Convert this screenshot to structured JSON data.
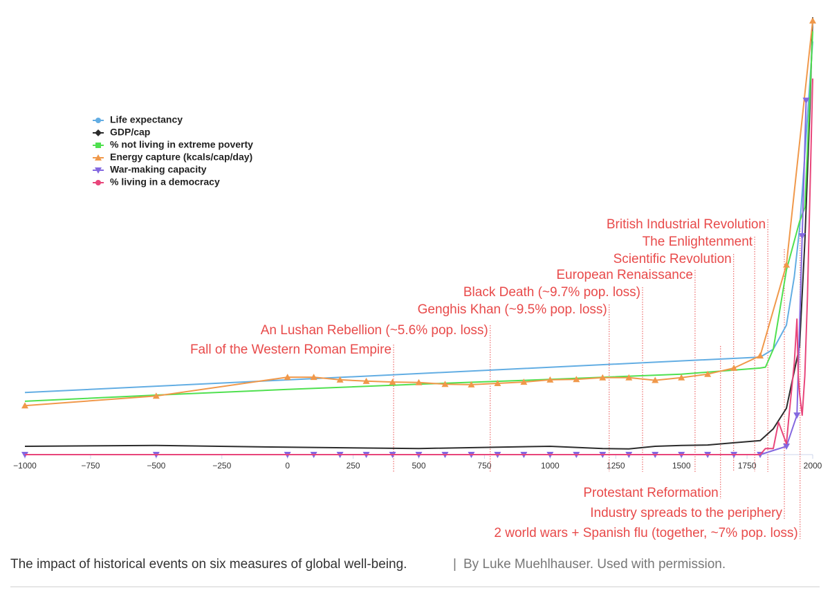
{
  "chart_data": {
    "type": "line",
    "xlim": [
      -1000,
      2000
    ],
    "ylim": [
      0,
      100
    ],
    "xticks": [
      {
        "value": -1000,
        "label": "−1000"
      },
      {
        "value": -750,
        "label": "−750"
      },
      {
        "value": -500,
        "label": "−500"
      },
      {
        "value": -250,
        "label": "−250"
      },
      0,
      250,
      500,
      750,
      1000,
      1250,
      1500,
      1750,
      2000
    ],
    "series": [
      {
        "name": "Life expectancy",
        "color": "#62ade3",
        "symbol": "circle",
        "show_markers": false,
        "x": [
          -1000,
          1800,
          1850,
          1900,
          1930,
          1950,
          1960,
          2000
        ],
        "values": [
          14.2,
          22.3,
          24.1,
          29.6,
          40.7,
          51.7,
          59.9,
          94.5
        ]
      },
      {
        "name": "GDP/cap",
        "color": "#2b2b2b",
        "symbol": "diamond",
        "show_markers": false,
        "x": [
          -1000,
          -500,
          0,
          500,
          1000,
          1200,
          1300,
          1400,
          1500,
          1600,
          1700,
          1800,
          1850,
          1900,
          1950,
          1970,
          1990,
          2000
        ],
        "values": [
          1.9,
          2.1,
          1.7,
          1.4,
          1.9,
          1.4,
          1.3,
          1.9,
          2.1,
          2.2,
          2.7,
          3.2,
          5.9,
          10.6,
          24.8,
          48.6,
          80.2,
          100
        ]
      },
      {
        "name": "% not living in extreme poverty",
        "color": "#4fe04f",
        "symbol": "square",
        "show_markers": false,
        "x": [
          -1000,
          -500,
          0,
          500,
          1000,
          1500,
          1800,
          1820,
          1850,
          1900,
          1950,
          1970,
          2000
        ],
        "values": [
          12.2,
          13.6,
          14.9,
          16.1,
          17.2,
          18.4,
          19.8,
          20,
          24.1,
          42.2,
          53.3,
          56.5,
          96.8
        ]
      },
      {
        "name": "Energy capture (kcals/cap/day)",
        "color": "#f0984a",
        "symbol": "triangle-up",
        "show_markers": true,
        "x": [
          -1000,
          -500,
          0,
          100,
          200,
          300,
          400,
          500,
          600,
          700,
          800,
          900,
          1000,
          1100,
          1200,
          1300,
          1400,
          1500,
          1600,
          1700,
          1800,
          1900,
          2000
        ],
        "values": [
          11.2,
          13.4,
          17.7,
          17.7,
          17.1,
          16.8,
          16.6,
          16.5,
          16.1,
          16.0,
          16.3,
          16.6,
          17.1,
          17.2,
          17.6,
          17.6,
          17.0,
          17.6,
          18.4,
          19.8,
          22.6,
          43.4,
          99.2
        ]
      },
      {
        "name": "War-making capacity",
        "color": "#8468e0",
        "symbol": "triangle-down",
        "show_markers": true,
        "x": [
          -1000,
          -500,
          0,
          100,
          200,
          300,
          400,
          500,
          600,
          700,
          800,
          900,
          1000,
          1100,
          1200,
          1300,
          1400,
          1500,
          1600,
          1700,
          1800,
          1900,
          1940,
          1960,
          1975
        ],
        "values": [
          0,
          0,
          0,
          0,
          0,
          0,
          0,
          0,
          0,
          0,
          0,
          0,
          0,
          0,
          0,
          0,
          0,
          0,
          0,
          0,
          0,
          1.9,
          9,
          50,
          81
        ]
      },
      {
        "name": "% living in a democracy",
        "color": "#e8457a",
        "symbol": "circle",
        "show_markers": false,
        "x": [
          -1000,
          1800,
          1820,
          1850,
          1870,
          1900,
          1910,
          1920,
          1930,
          1940,
          1945,
          1950,
          1960,
          1970,
          1980,
          2000
        ],
        "values": [
          0,
          0,
          1.4,
          1.4,
          7.4,
          2.5,
          9,
          15,
          21,
          31,
          18,
          14,
          9,
          18,
          36,
          86
        ]
      }
    ],
    "annotations": [
      {
        "text": "Fall of the Western Roman Empire",
        "x": 404
      },
      {
        "text": "An Lushan Rebellion (~5.6% pop. loss)",
        "x": 772
      },
      {
        "text": "Genghis Khan (~9.5% pop. loss)",
        "x": 1225
      },
      {
        "text": "Black Death (~9.7% pop. loss)",
        "x": 1352
      },
      {
        "text": "European Renaissance",
        "x": 1552
      },
      {
        "text": "Scientific Revolution",
        "x": 1699
      },
      {
        "text": "The Enlightenment",
        "x": 1779
      },
      {
        "text": "British Industrial Revolution",
        "x": 1829
      },
      {
        "text": "Protestant Reformation",
        "x": 1649
      },
      {
        "text": "Industry spreads to the periphery",
        "x": 1892
      },
      {
        "text": "2 world wars + Spanish flu (together, ~7%  pop. loss)",
        "x": 1952
      }
    ],
    "caption": "The impact of historical events on six measures of global well-being.",
    "separator": "|",
    "credit": "By Luke Muehlhauser. Used with permission."
  }
}
